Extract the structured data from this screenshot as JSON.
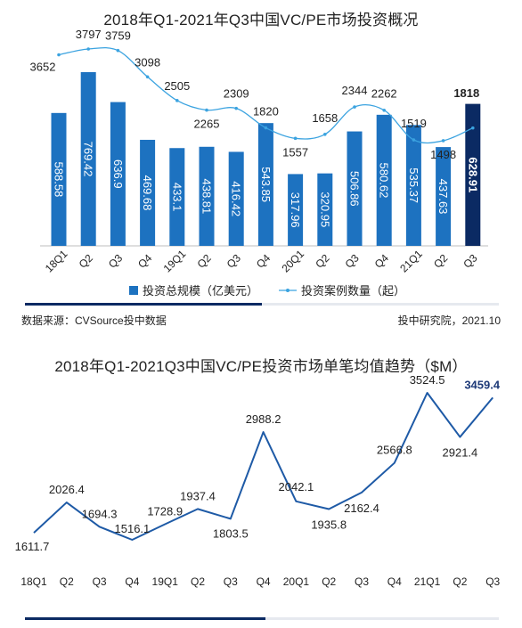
{
  "footer": {
    "source": "数据来源：CVSource投中数据",
    "credit": "投中研究院，2021.10"
  },
  "chart_data": [
    {
      "type": "bar",
      "title": "2018年Q1-2021年Q3中国VC/PE市场投资概况",
      "categories": [
        "18Q1",
        "Q2",
        "Q3",
        "Q4",
        "19Q1",
        "Q2",
        "Q3",
        "Q4",
        "20Q1",
        "Q2",
        "Q3",
        "Q4",
        "21Q1",
        "Q2",
        "Q3"
      ],
      "series": [
        {
          "name": "投资总规模（亿美元）",
          "kind": "bar",
          "values": [
            588.58,
            769.42,
            636.9,
            469.68,
            433.1,
            438.81,
            416.42,
            543.85,
            317.96,
            320.95,
            506.86,
            580.62,
            535.37,
            437.63,
            628.91
          ],
          "labels": [
            "588.58",
            "769.42",
            "636.9",
            "469.68",
            "433.1",
            "438.81",
            "416.42",
            "543.85",
            "317.96",
            "320.95",
            "506.86",
            "580.62",
            "535.37",
            "437.63",
            "628.91"
          ]
        },
        {
          "name": "投资案例数量（起）",
          "kind": "line",
          "values": [
            3652,
            3797,
            3759,
            3098,
            2505,
            2265,
            2309,
            1820,
            1557,
            1658,
            2344,
            2262,
            1519,
            1498,
            1818
          ],
          "labels": [
            "3652",
            "3797",
            "3759",
            "3098",
            "2505",
            "2265",
            "2309",
            "1820",
            "1557",
            "1658",
            "2344",
            "2262",
            "1519",
            "1498",
            "1818"
          ]
        }
      ],
      "colors": {
        "bar": "#1d72c0",
        "bar_highlight": "#0b2a63",
        "line": "#3ba3e0"
      },
      "highlight_last": true,
      "legend": "bottom"
    },
    {
      "type": "line",
      "title": "2018年Q1-2021Q3中国VC/PE投资市场单笔均值趋势（$M）",
      "categories": [
        "18Q1",
        "Q2",
        "Q3",
        "Q4",
        "19Q1",
        "Q2",
        "Q3",
        "Q4",
        "20Q1",
        "Q2",
        "Q3",
        "Q4",
        "21Q1",
        "Q2",
        "Q3"
      ],
      "series": [
        {
          "values": [
            1611.7,
            2026.4,
            1694.3,
            1516.1,
            1728.9,
            1937.4,
            1803.5,
            2988.2,
            2042.1,
            1935.8,
            2162.4,
            2566.8,
            3524.5,
            2921.4,
            3459.4
          ],
          "labels": [
            "1611.7",
            "2026.4",
            "1694.3",
            "1516.1",
            "1728.9",
            "1937.4",
            "1803.5",
            "2988.2",
            "2042.1",
            "1935.8",
            "2162.4",
            "2566.8",
            "3524.5",
            "2921.4",
            "3459.4"
          ]
        }
      ],
      "colors": {
        "line": "#1e5aa6",
        "highlight_label": "#1e3a78"
      },
      "highlight_last": true
    }
  ]
}
